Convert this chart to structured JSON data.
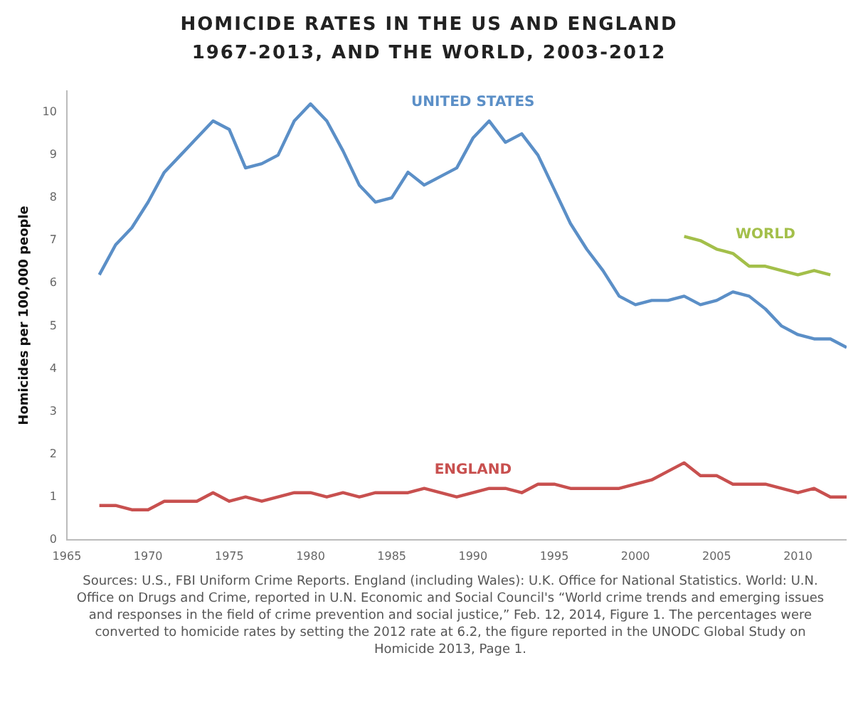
{
  "chart_data": {
    "type": "line",
    "title": "HOMICIDE RATES IN THE US AND ENGLAND\n1967-2013, AND THE WORLD, 2003-2012",
    "ylabel": "Homicides per 100,000 people",
    "x": [
      1967,
      1968,
      1969,
      1970,
      1971,
      1972,
      1973,
      1974,
      1975,
      1976,
      1977,
      1978,
      1979,
      1980,
      1981,
      1982,
      1983,
      1984,
      1985,
      1986,
      1987,
      1988,
      1989,
      1990,
      1991,
      1992,
      1993,
      1994,
      1995,
      1996,
      1997,
      1998,
      1999,
      2000,
      2001,
      2002,
      2003,
      2004,
      2005,
      2006,
      2007,
      2008,
      2009,
      2010,
      2011,
      2012,
      2013
    ],
    "series": [
      {
        "name": "UNITED STATES",
        "color": "#5b8fc7",
        "values": [
          6.2,
          6.9,
          7.3,
          7.9,
          8.6,
          9.0,
          9.4,
          9.8,
          9.6,
          8.7,
          8.8,
          9.0,
          9.8,
          10.2,
          9.8,
          9.1,
          8.3,
          7.9,
          8.0,
          8.6,
          8.3,
          8.5,
          8.7,
          9.4,
          9.8,
          9.3,
          9.5,
          9.0,
          8.2,
          7.4,
          6.8,
          6.3,
          5.7,
          5.5,
          5.6,
          5.6,
          5.7,
          5.5,
          5.6,
          5.8,
          5.7,
          5.4,
          5.0,
          4.8,
          4.7,
          4.7,
          4.5
        ]
      },
      {
        "name": "WORLD",
        "color": "#a3bf4a",
        "x": [
          2003,
          2004,
          2005,
          2006,
          2007,
          2008,
          2009,
          2010,
          2011,
          2012
        ],
        "values": [
          7.1,
          7.0,
          6.8,
          6.7,
          6.4,
          6.4,
          6.3,
          6.2,
          6.3,
          6.2
        ]
      },
      {
        "name": "ENGLAND",
        "color": "#c8504f",
        "values": [
          0.8,
          0.8,
          0.7,
          0.7,
          0.9,
          0.9,
          0.9,
          1.1,
          0.9,
          1.0,
          0.9,
          1.0,
          1.1,
          1.1,
          1.0,
          1.1,
          1.0,
          1.1,
          1.1,
          1.1,
          1.2,
          1.1,
          1.0,
          1.1,
          1.2,
          1.2,
          1.1,
          1.3,
          1.3,
          1.2,
          1.2,
          1.2,
          1.2,
          1.3,
          1.4,
          1.6,
          1.8,
          1.5,
          1.5,
          1.3,
          1.3,
          1.3,
          1.2,
          1.1,
          1.2,
          1.0,
          1.0
        ]
      }
    ],
    "xlim": [
      1965,
      2013
    ],
    "xticks": [
      1965,
      1970,
      1975,
      1980,
      1985,
      1990,
      1995,
      2000,
      2005,
      2010
    ],
    "ylim": [
      0,
      10.5
    ],
    "yticks": [
      0,
      1,
      2,
      3,
      4,
      5,
      6,
      7,
      8,
      9,
      10
    ],
    "grid": false,
    "legend": false,
    "marker": "none",
    "line_style": "solid",
    "annotations": [
      "Sources: U.S., FBI Uniform Crime Reports. England (including Wales): U.K. Office for National Statistics. World: U.N. Office on Drugs and Crime, reported in U.N. Economic and Social Council's “World crime trends and emerging issues and responses in the field of crime prevention and social justice,” Feb. 12, 2014, Figure 1. The percentages were converted to homicide rates by setting the 2012 rate at 6.2, the figure reported in the UNODC Global Study on Homicide 2013, Page 1."
    ]
  }
}
